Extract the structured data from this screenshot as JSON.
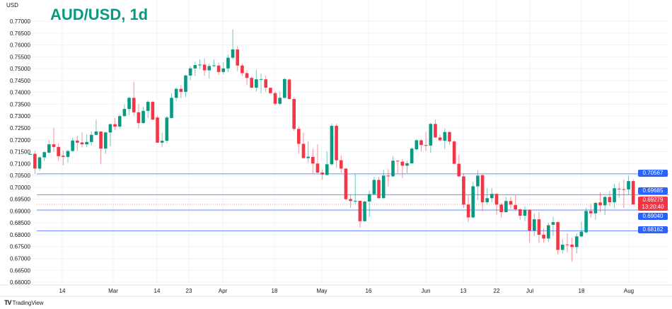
{
  "header": {
    "currency": "USD",
    "title": "AUD/USD, 1d"
  },
  "footer": {
    "brand": "TradingView"
  },
  "colors": {
    "up": "#089981",
    "down": "#f23645",
    "level_line": "#2962ff",
    "title": "#089981"
  },
  "chart_data": {
    "type": "candlestick",
    "title": "AUD/USD, 1d",
    "ylabel": "USD",
    "ylim": [
      0.66,
      0.77
    ],
    "grid": true,
    "y_ticks": [
      "0.77000",
      "0.76500",
      "0.76000",
      "0.75500",
      "0.75000",
      "0.74500",
      "0.74000",
      "0.73500",
      "0.73000",
      "0.72500",
      "0.72000",
      "0.71500",
      "0.71000",
      "0.70500",
      "0.70000",
      "0.69500",
      "0.69000",
      "0.68500",
      "0.68000",
      "0.67500",
      "0.67000",
      "0.66500",
      "0.66000"
    ],
    "x_ticks": [
      "14",
      "Mar",
      "14",
      "23",
      "Apr",
      "18",
      "May",
      "16",
      "Jun",
      "13",
      "22",
      "Jul",
      "18",
      "Aug"
    ],
    "levels": [
      {
        "label": "0.70567",
        "value": 0.70567
      },
      {
        "label": "0.69685",
        "value": 0.69685
      },
      {
        "label": "0.69040",
        "value": 0.6904
      },
      {
        "label": "0.68162",
        "value": 0.68162
      }
    ],
    "last_price": {
      "label": "0.69279",
      "value": 0.69279,
      "countdown": "13:20:40"
    },
    "ohlc_fields": [
      "open",
      "high",
      "low",
      "close"
    ],
    "ohlc": [
      [
        0.714,
        0.7143,
        0.7137,
        0.714
      ],
      [
        0.7141,
        0.7153,
        0.7056,
        0.7079
      ],
      [
        0.7079,
        0.7131,
        0.7069,
        0.7126
      ],
      [
        0.7126,
        0.7153,
        0.7112,
        0.7148
      ],
      [
        0.7146,
        0.7198,
        0.7143,
        0.7181
      ],
      [
        0.7181,
        0.7251,
        0.715,
        0.717
      ],
      [
        0.717,
        0.7185,
        0.7112,
        0.7131
      ],
      [
        0.7133,
        0.7155,
        0.7092,
        0.7128
      ],
      [
        0.7128,
        0.7158,
        0.7104,
        0.7153
      ],
      [
        0.7153,
        0.7208,
        0.7148,
        0.7197
      ],
      [
        0.7197,
        0.7218,
        0.7153,
        0.7188
      ],
      [
        0.7189,
        0.7231,
        0.7168,
        0.7181
      ],
      [
        0.7181,
        0.7223,
        0.7168,
        0.7191
      ],
      [
        0.7191,
        0.7235,
        0.7175,
        0.7221
      ],
      [
        0.7221,
        0.7285,
        0.7223,
        0.7235
      ],
      [
        0.7235,
        0.7235,
        0.7099,
        0.7163
      ],
      [
        0.7163,
        0.7235,
        0.7141,
        0.7231
      ],
      [
        0.7231,
        0.7268,
        0.7173,
        0.7266
      ],
      [
        0.7266,
        0.7292,
        0.7241,
        0.7256
      ],
      [
        0.7256,
        0.7307,
        0.7248,
        0.73
      ],
      [
        0.73,
        0.735,
        0.7297,
        0.733
      ],
      [
        0.733,
        0.7382,
        0.7304,
        0.7377
      ],
      [
        0.7377,
        0.7444,
        0.7302,
        0.7316
      ],
      [
        0.7316,
        0.735,
        0.7248,
        0.7271
      ],
      [
        0.7271,
        0.734,
        0.7268,
        0.7322
      ],
      [
        0.7322,
        0.7367,
        0.7292,
        0.736
      ],
      [
        0.736,
        0.7364,
        0.7285,
        0.7285
      ],
      [
        0.7294,
        0.7302,
        0.7188,
        0.7188
      ],
      [
        0.7188,
        0.7231,
        0.7168,
        0.7196
      ],
      [
        0.7196,
        0.73,
        0.7185,
        0.7294
      ],
      [
        0.7292,
        0.7397,
        0.729,
        0.7377
      ],
      [
        0.7377,
        0.742,
        0.7364,
        0.7415
      ],
      [
        0.7415,
        0.743,
        0.7377,
        0.7402
      ],
      [
        0.7402,
        0.7476,
        0.738,
        0.7471
      ],
      [
        0.7471,
        0.7511,
        0.7453,
        0.7501
      ],
      [
        0.7501,
        0.7529,
        0.7469,
        0.7515
      ],
      [
        0.7516,
        0.7539,
        0.7498,
        0.7517
      ],
      [
        0.7517,
        0.7543,
        0.7469,
        0.7493
      ],
      [
        0.7493,
        0.7521,
        0.7459,
        0.7511
      ],
      [
        0.7513,
        0.7539,
        0.7506,
        0.7514
      ],
      [
        0.7513,
        0.7526,
        0.7473,
        0.7486
      ],
      [
        0.7486,
        0.7526,
        0.7476,
        0.7501
      ],
      [
        0.7501,
        0.7559,
        0.7486,
        0.7546
      ],
      [
        0.7546,
        0.7665,
        0.7539,
        0.7581
      ],
      [
        0.7581,
        0.7596,
        0.7489,
        0.7513
      ],
      [
        0.7513,
        0.7521,
        0.7469,
        0.7481
      ],
      [
        0.7481,
        0.7493,
        0.743,
        0.7461
      ],
      [
        0.7461,
        0.7466,
        0.7417,
        0.742
      ],
      [
        0.742,
        0.7496,
        0.7404,
        0.7455
      ],
      [
        0.7455,
        0.7479,
        0.7396,
        0.7456
      ],
      [
        0.7455,
        0.7471,
        0.7402,
        0.742
      ],
      [
        0.7419,
        0.7422,
        0.7394,
        0.7397
      ],
      [
        0.7397,
        0.7404,
        0.7346,
        0.7352
      ],
      [
        0.7352,
        0.7402,
        0.7346,
        0.7377
      ],
      [
        0.7377,
        0.7461,
        0.7374,
        0.7456
      ],
      [
        0.7454,
        0.7458,
        0.737,
        0.7372
      ],
      [
        0.7372,
        0.738,
        0.7238,
        0.7246
      ],
      [
        0.7246,
        0.7255,
        0.7141,
        0.7183
      ],
      [
        0.7183,
        0.7231,
        0.7121,
        0.7123
      ],
      [
        0.7123,
        0.7193,
        0.7104,
        0.7129
      ],
      [
        0.7128,
        0.7163,
        0.7059,
        0.71
      ],
      [
        0.71,
        0.7181,
        0.7059,
        0.7062
      ],
      [
        0.7062,
        0.7074,
        0.7032,
        0.7054
      ],
      [
        0.7052,
        0.7151,
        0.7049,
        0.7097
      ],
      [
        0.7097,
        0.7268,
        0.7092,
        0.7259
      ],
      [
        0.7259,
        0.7268,
        0.7082,
        0.7114
      ],
      [
        0.7114,
        0.7135,
        0.7059,
        0.7079
      ],
      [
        0.7079,
        0.7079,
        0.6945,
        0.695
      ],
      [
        0.695,
        0.6969,
        0.6913,
        0.6942
      ],
      [
        0.6943,
        0.7056,
        0.693,
        0.6943
      ],
      [
        0.6943,
        0.6943,
        0.683,
        0.6857
      ],
      [
        0.6857,
        0.6943,
        0.6855,
        0.694
      ],
      [
        0.694,
        0.6986,
        0.6875,
        0.6971
      ],
      [
        0.6971,
        0.7044,
        0.6969,
        0.7031
      ],
      [
        0.7031,
        0.7044,
        0.6953,
        0.6954
      ],
      [
        0.6954,
        0.7074,
        0.6953,
        0.7049
      ],
      [
        0.7049,
        0.7076,
        0.7004,
        0.7046
      ],
      [
        0.7046,
        0.713,
        0.7044,
        0.7112
      ],
      [
        0.7112,
        0.7114,
        0.7059,
        0.7111
      ],
      [
        0.7108,
        0.7119,
        0.7039,
        0.7091
      ],
      [
        0.7091,
        0.7112,
        0.7059,
        0.7101
      ],
      [
        0.7101,
        0.7168,
        0.7099,
        0.7163
      ],
      [
        0.716,
        0.7203,
        0.7155,
        0.7198
      ],
      [
        0.7198,
        0.7203,
        0.7151,
        0.7178
      ],
      [
        0.7178,
        0.7233,
        0.7153,
        0.7176
      ],
      [
        0.7176,
        0.7272,
        0.7145,
        0.7267
      ],
      [
        0.7267,
        0.7285,
        0.7208,
        0.721
      ],
      [
        0.721,
        0.7223,
        0.7195,
        0.7198
      ],
      [
        0.7196,
        0.7248,
        0.7161,
        0.7233
      ],
      [
        0.7233,
        0.7235,
        0.7178,
        0.7193
      ],
      [
        0.7193,
        0.7198,
        0.7096,
        0.7099
      ],
      [
        0.7099,
        0.7138,
        0.7044,
        0.7046
      ],
      [
        0.7046,
        0.7059,
        0.6913,
        0.6927
      ],
      [
        0.6927,
        0.6969,
        0.6853,
        0.6873
      ],
      [
        0.6873,
        0.7024,
        0.687,
        0.7004
      ],
      [
        0.7004,
        0.7072,
        0.6947,
        0.7049
      ],
      [
        0.7051,
        0.7054,
        0.69,
        0.6937
      ],
      [
        0.6937,
        0.6996,
        0.6927,
        0.6954
      ],
      [
        0.6954,
        0.6996,
        0.6937,
        0.6972
      ],
      [
        0.6972,
        0.6974,
        0.6885,
        0.6927
      ],
      [
        0.6927,
        0.6935,
        0.6873,
        0.6895
      ],
      [
        0.6895,
        0.6959,
        0.6893,
        0.6942
      ],
      [
        0.6942,
        0.6959,
        0.691,
        0.6927
      ],
      [
        0.6925,
        0.6966,
        0.69,
        0.6907
      ],
      [
        0.6907,
        0.691,
        0.6863,
        0.688
      ],
      [
        0.688,
        0.692,
        0.6857,
        0.6905
      ],
      [
        0.6905,
        0.6907,
        0.6766,
        0.6817
      ],
      [
        0.6817,
        0.689,
        0.6795,
        0.6865
      ],
      [
        0.6865,
        0.6895,
        0.6766,
        0.68
      ],
      [
        0.68,
        0.6827,
        0.6766,
        0.6784
      ],
      [
        0.6784,
        0.685,
        0.6769,
        0.684
      ],
      [
        0.6842,
        0.6875,
        0.6795,
        0.6853
      ],
      [
        0.6853,
        0.6857,
        0.6716,
        0.6736
      ],
      [
        0.6736,
        0.6781,
        0.6721,
        0.6758
      ],
      [
        0.6759,
        0.6806,
        0.6726,
        0.6758
      ],
      [
        0.6758,
        0.6787,
        0.6686,
        0.6748
      ],
      [
        0.6748,
        0.6805,
        0.6721,
        0.6793
      ],
      [
        0.6793,
        0.6855,
        0.6787,
        0.6813
      ],
      [
        0.681,
        0.6913,
        0.6807,
        0.69
      ],
      [
        0.69,
        0.693,
        0.6873,
        0.689
      ],
      [
        0.689,
        0.6939,
        0.6863,
        0.6934
      ],
      [
        0.6936,
        0.6979,
        0.6895,
        0.6924
      ],
      [
        0.6924,
        0.6964,
        0.6883,
        0.6959
      ],
      [
        0.6959,
        0.6984,
        0.692,
        0.6937
      ],
      [
        0.6937,
        0.7014,
        0.6913,
        0.6996
      ],
      [
        0.6994,
        0.7019,
        0.6956,
        0.6991
      ],
      [
        0.6992,
        0.7032,
        0.6913,
        0.6991
      ],
      [
        0.6991,
        0.7049,
        0.6969,
        0.7026
      ],
      [
        0.7026,
        0.7034,
        0.6926,
        0.6928
      ]
    ]
  }
}
